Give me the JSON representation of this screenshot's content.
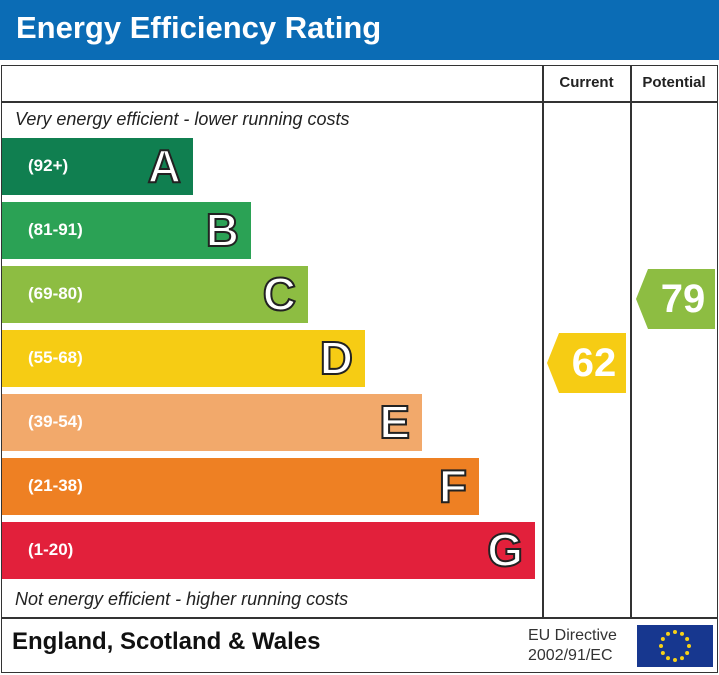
{
  "header": {
    "title": "Energy Efficiency Rating"
  },
  "columns": {
    "current": "Current",
    "potential": "Potential"
  },
  "notes": {
    "top": "Very energy efficient - lower running costs",
    "bottom": "Not energy efficient - higher running costs"
  },
  "footer": {
    "region": "England, Scotland & Wales",
    "directive_line1": "EU Directive",
    "directive_line2": "2002/91/EC"
  },
  "chart_data": {
    "type": "bar",
    "title": "Energy Efficiency Rating",
    "categories": [
      "A",
      "B",
      "C",
      "D",
      "E",
      "F",
      "G"
    ],
    "ranges": [
      "(92+)",
      "(81-91)",
      "(69-80)",
      "(55-68)",
      "(39-54)",
      "(21-38)",
      "(1-20)"
    ],
    "colors": [
      "#107f50",
      "#2ba255",
      "#8dbd42",
      "#f6cc14",
      "#f2a96b",
      "#ee8023",
      "#e2203b"
    ],
    "current": {
      "label": "Current",
      "value": 62,
      "band": "D"
    },
    "potential": {
      "label": "Potential",
      "value": 79,
      "band": "C"
    }
  }
}
